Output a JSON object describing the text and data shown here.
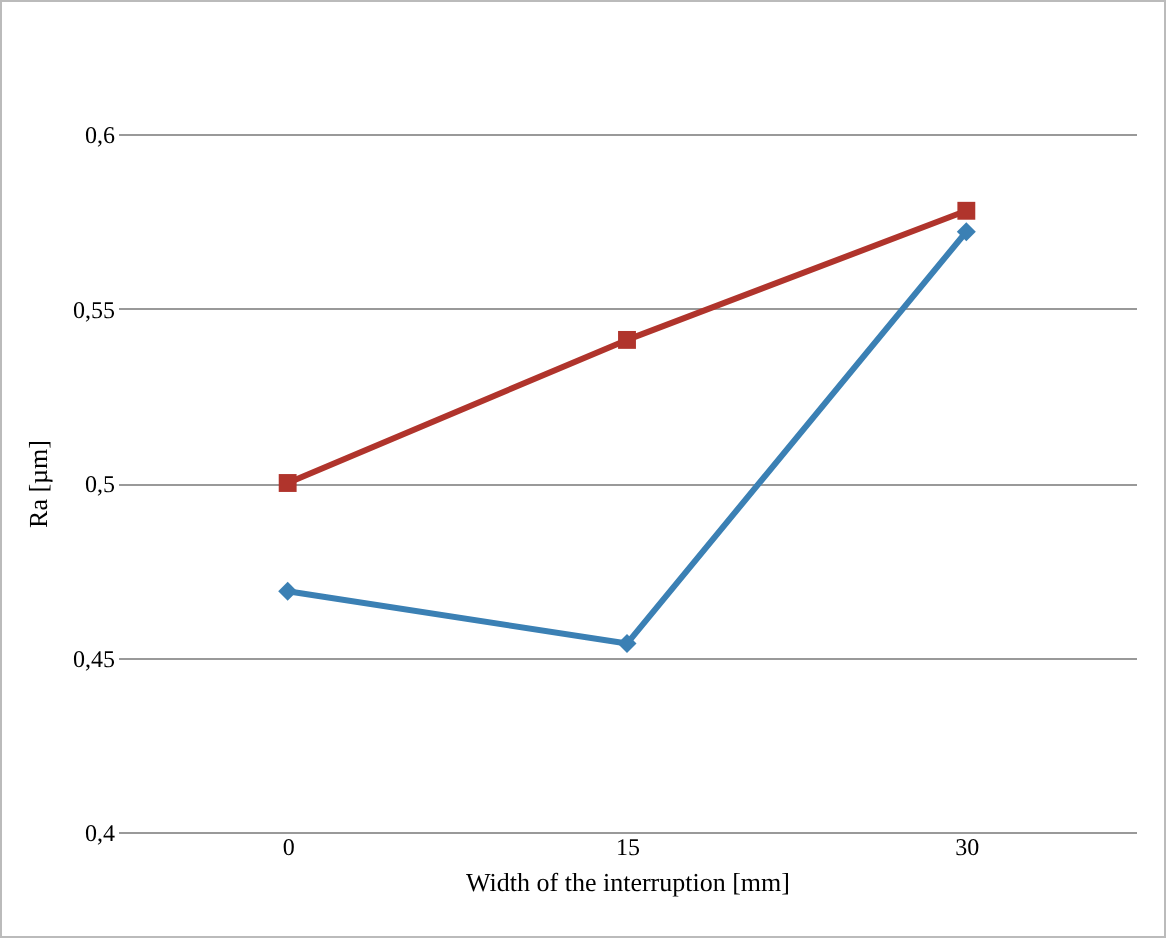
{
  "chart_data": {
    "type": "line",
    "xlabel": "Width of the interruption [mm]",
    "ylabel": "Ra [µm]",
    "categories": [
      "0",
      "15",
      "30"
    ],
    "series": [
      {
        "color": "#3b80b4",
        "marker": "diamond",
        "values": [
          0.469,
          0.454,
          0.572
        ]
      },
      {
        "color": "#b0342c",
        "marker": "square",
        "values": [
          0.5,
          0.541,
          0.578
        ]
      }
    ],
    "ylim": [
      0.4,
      0.6
    ],
    "yticks": [
      {
        "value": 0.4,
        "label": "0,4"
      },
      {
        "value": 0.45,
        "label": "0,45"
      },
      {
        "value": 0.5,
        "label": "0,5"
      },
      {
        "value": 0.55,
        "label": "0,55"
      },
      {
        "value": 0.6,
        "label": "0,6"
      }
    ],
    "grid": "y",
    "line_style": "solid"
  }
}
